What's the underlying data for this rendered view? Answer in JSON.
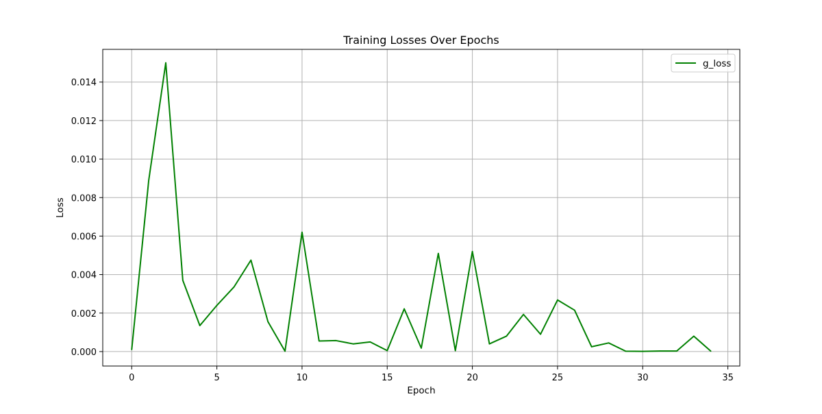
{
  "chart_data": {
    "type": "line",
    "title": "Training Losses Over Epochs",
    "xlabel": "Epoch",
    "ylabel": "Loss",
    "xlim": [
      -1.7,
      35.7
    ],
    "ylim": [
      -0.00075,
      0.0157
    ],
    "xticks": [
      0,
      5,
      10,
      15,
      20,
      25,
      30,
      35
    ],
    "yticks": [
      0.0,
      0.002,
      0.004,
      0.006,
      0.008,
      0.01,
      0.012,
      0.014
    ],
    "xtick_labels": [
      "0",
      "5",
      "10",
      "15",
      "20",
      "25",
      "30",
      "35"
    ],
    "ytick_labels": [
      "0.000",
      "0.002",
      "0.004",
      "0.006",
      "0.008",
      "0.010",
      "0.012",
      "0.014"
    ],
    "grid": true,
    "legend_position": "top-right",
    "x": [
      0,
      1,
      2,
      3,
      4,
      5,
      6,
      7,
      8,
      9,
      10,
      11,
      12,
      13,
      14,
      15,
      16,
      17,
      18,
      19,
      20,
      21,
      22,
      23,
      24,
      25,
      26,
      27,
      28,
      29,
      30,
      31,
      32,
      33,
      34
    ],
    "series": [
      {
        "name": "g_loss",
        "color": "#008000",
        "values": [
          0.0001,
          0.0089,
          0.015,
          0.0037,
          0.00135,
          0.0024,
          0.00335,
          0.00475,
          0.00155,
          2e-05,
          0.0062,
          0.00055,
          0.00057,
          0.0004,
          0.0005,
          5e-05,
          0.00222,
          0.00018,
          0.0051,
          5e-05,
          0.0052,
          0.0004,
          0.0008,
          0.00193,
          0.0009,
          0.00268,
          0.00215,
          0.00025,
          0.00045,
          2e-05,
          1e-05,
          3e-05,
          3e-05,
          0.0008,
          2e-05
        ]
      }
    ]
  }
}
